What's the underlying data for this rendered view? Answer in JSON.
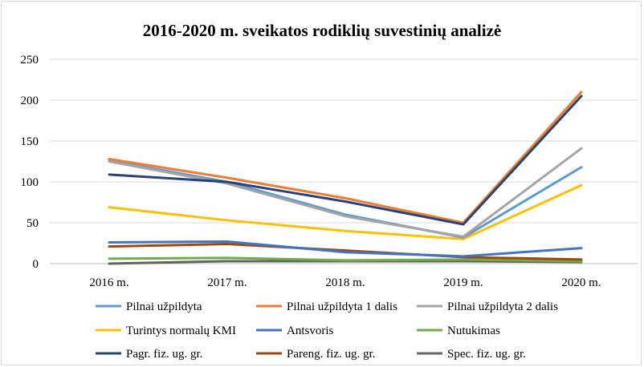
{
  "chart_data": {
    "type": "line",
    "title": "2016-2020 m. sveikatos rodiklių suvestinių analizė",
    "categories": [
      "2016 m.",
      "2017 m.",
      "2018 m.",
      "2019 m.",
      "2020 m."
    ],
    "ylim": [
      0,
      250
    ],
    "yticks": [
      0,
      50,
      100,
      150,
      200,
      250
    ],
    "grid": true,
    "legend_position": "bottom",
    "series": [
      {
        "name": "Pilnai užpildyta",
        "color": "#5b9bd5",
        "values": [
          126,
          100,
          60,
          32,
          118
        ]
      },
      {
        "name": "Pilnai užpildyta 1 dalis",
        "color": "#ed7d31",
        "values": [
          128,
          105,
          80,
          50,
          210
        ]
      },
      {
        "name": "Pilnai užpildyta 2 dalis",
        "color": "#a5a5a5",
        "values": [
          125,
          98,
          58,
          33,
          141
        ]
      },
      {
        "name": "Turintys normalų KMI",
        "color": "#ffc000",
        "values": [
          69,
          53,
          40,
          30,
          96
        ]
      },
      {
        "name": "Antsvoris",
        "color": "#4472c4",
        "values": [
          26,
          27,
          14,
          9,
          19
        ]
      },
      {
        "name": "Nutukimas",
        "color": "#70ad47",
        "values": [
          6,
          7,
          4,
          5,
          3
        ]
      },
      {
        "name": "Pagr. fiz. ug. gr.",
        "color": "#264478",
        "values": [
          109,
          100,
          76,
          48,
          205
        ]
      },
      {
        "name": "Pareng. fiz. ug. gr.",
        "color": "#9e480e",
        "values": [
          21,
          24,
          16,
          8,
          5
        ]
      },
      {
        "name": "Spec. fiz. ug. gr.",
        "color": "#636363",
        "values": [
          0,
          3,
          3,
          3,
          2
        ]
      }
    ]
  }
}
